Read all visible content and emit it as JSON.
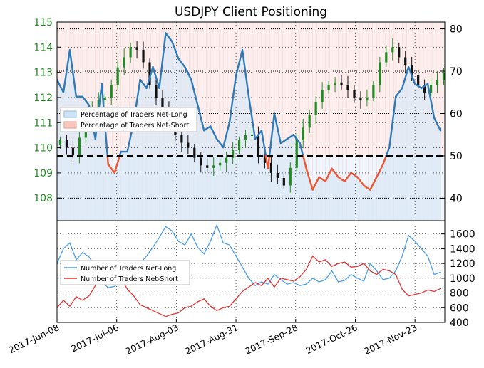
{
  "chart_data": [
    {
      "type": "candlestick-with-line",
      "title": "USDJPY Client Positioning",
      "x_ticks": [
        "2017-Jun-08",
        "2017-Jul-06",
        "2017-Aug-03",
        "2017-Aug-31",
        "2017-Sep-28",
        "2017-Oct-26",
        "2017-Nov-23"
      ],
      "x_range": [
        "2017-06-08",
        "2017-12-07"
      ],
      "y_left": {
        "ticks": [
          108,
          109,
          110,
          111,
          112,
          113,
          114,
          115
        ],
        "range": [
          107.1,
          115.0
        ],
        "color": "#228b22"
      },
      "y_right": {
        "ticks": [
          40,
          50,
          60,
          70,
          80
        ],
        "range": [
          34.7,
          81.6
        ]
      },
      "reference_line": 50,
      "legend": {
        "placement": "center-left",
        "entries": [
          "Percentage of Traders Net-Long",
          "Percentage of Traders Net-Short"
        ]
      },
      "series": [
        {
          "name": "Percentage of Traders Net-Long",
          "axis": "right",
          "color": "#2e7ab8",
          "below_50_color": "#ee5533",
          "x": [
            0,
            3,
            6,
            9,
            12,
            15,
            18,
            21,
            24,
            27,
            30,
            33,
            36,
            39,
            42,
            45,
            48,
            51,
            54,
            57,
            60,
            63,
            66,
            69,
            72,
            75,
            78,
            81,
            84,
            87,
            90,
            93,
            96,
            99,
            102,
            105,
            108,
            111,
            114,
            117,
            120,
            123,
            126,
            129,
            132,
            135,
            138,
            141,
            144,
            147,
            150,
            153,
            156,
            159,
            162,
            165,
            168,
            171,
            174,
            177,
            180
          ],
          "values": [
            68,
            65,
            75,
            64,
            64,
            62,
            54,
            67,
            48,
            46,
            51,
            51,
            58,
            68,
            66,
            71,
            66,
            79,
            77,
            73,
            71,
            68,
            62,
            56,
            57,
            54,
            52,
            58,
            69,
            75,
            64,
            54,
            56,
            47,
            60,
            53,
            54,
            55,
            53,
            47,
            42,
            45,
            44,
            47,
            45,
            44,
            46,
            45,
            43,
            42,
            45,
            48,
            52,
            64,
            66,
            71,
            67,
            66,
            67,
            59,
            56
          ]
        },
        {
          "name": "USDJPY",
          "type": "candlestick",
          "axis": "left",
          "up_color": "#228b22",
          "down_color": "#111111",
          "close": [
            110.3,
            110.0,
            109.7,
            110.4,
            111.1,
            111.6,
            111.9,
            112.0,
            112.5,
            113.2,
            113.6,
            114.0,
            113.9,
            113.4,
            112.5,
            112.0,
            111.5,
            111.0,
            110.5,
            110.2,
            110.0,
            109.6,
            109.3,
            109.2,
            109.3,
            109.4,
            109.6,
            109.9,
            110.3,
            110.5,
            110.5,
            109.7,
            109.4,
            109.0,
            108.8,
            108.5,
            109.2,
            110.3,
            110.8,
            111.3,
            111.8,
            112.3,
            112.5,
            112.6,
            112.5,
            112.3,
            112.0,
            111.9,
            112.0,
            112.5,
            113.4,
            113.8,
            114.0,
            113.6,
            113.3,
            112.9,
            112.5,
            112.2,
            112.5,
            112.7,
            113.0
          ]
        }
      ]
    },
    {
      "type": "line",
      "x_ticks": [
        "2017-Jun-08",
        "2017-Jul-06",
        "2017-Aug-03",
        "2017-Aug-31",
        "2017-Sep-28",
        "2017-Oct-26",
        "2017-Nov-23"
      ],
      "y_right": {
        "ticks": [
          400,
          600,
          800,
          1000,
          1200,
          1400,
          1600
        ],
        "range": [
          400,
          1780
        ]
      },
      "legend": {
        "placement": "center-left",
        "entries": [
          "Number of Traders Net-Long",
          "Number of Traders Net-Short"
        ]
      },
      "series": [
        {
          "name": "Number of Traders Net-Long",
          "color": "#4a9de8",
          "x": [
            0,
            3,
            6,
            9,
            12,
            15,
            18,
            21,
            24,
            27,
            30,
            33,
            36,
            39,
            42,
            45,
            48,
            51,
            54,
            57,
            60,
            63,
            66,
            69,
            72,
            75,
            78,
            81,
            84,
            87,
            90,
            93,
            96,
            99,
            102,
            105,
            108,
            111,
            114,
            117,
            120,
            123,
            126,
            129,
            132,
            135,
            138,
            141,
            144,
            147,
            150,
            153,
            156,
            159,
            162,
            165,
            168,
            171,
            174,
            177,
            180
          ],
          "values": [
            1200,
            1400,
            1480,
            1250,
            1350,
            1290,
            1150,
            950,
            870,
            890,
            960,
            940,
            1000,
            1200,
            1300,
            1420,
            1550,
            1700,
            1640,
            1500,
            1450,
            1600,
            1420,
            1330,
            1500,
            1720,
            1480,
            1450,
            1300,
            1150,
            1000,
            900,
            950,
            920,
            1050,
            980,
            920,
            940,
            900,
            920,
            1000,
            950,
            980,
            1100,
            950,
            970,
            1050,
            1000,
            960,
            1200,
            1100,
            980,
            1000,
            1100,
            1300,
            1580,
            1500,
            1400,
            1300,
            1050,
            1080
          ]
        },
        {
          "name": "Number of Traders Net-Short",
          "color": "#e23232",
          "x": [
            0,
            3,
            6,
            9,
            12,
            15,
            18,
            21,
            24,
            27,
            30,
            33,
            36,
            39,
            42,
            45,
            48,
            51,
            54,
            57,
            60,
            63,
            66,
            69,
            72,
            75,
            78,
            81,
            84,
            87,
            90,
            93,
            96,
            99,
            102,
            105,
            108,
            111,
            114,
            117,
            120,
            123,
            126,
            129,
            132,
            135,
            138,
            141,
            144,
            147,
            150,
            153,
            156,
            159,
            162,
            165,
            168,
            171,
            174,
            177,
            180
          ],
          "values": [
            600,
            700,
            620,
            750,
            700,
            760,
            900,
            1000,
            1050,
            1100,
            1000,
            850,
            760,
            640,
            600,
            560,
            520,
            480,
            510,
            530,
            600,
            620,
            680,
            720,
            620,
            560,
            600,
            620,
            720,
            820,
            880,
            940,
            900,
            1000,
            880,
            1000,
            980,
            960,
            1020,
            1120,
            1300,
            1220,
            1250,
            1160,
            1200,
            1220,
            1150,
            1160,
            1200,
            1100,
            1050,
            1120,
            1100,
            1050,
            850,
            760,
            780,
            800,
            840,
            820,
            860
          ]
        }
      ]
    }
  ]
}
